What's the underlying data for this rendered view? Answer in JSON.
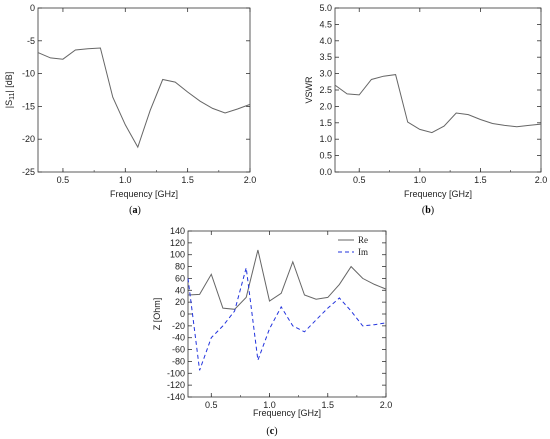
{
  "chart_data": [
    {
      "id": "a",
      "type": "line",
      "caption": "a",
      "xlabel": "Frequency [GHz]",
      "ylabel_main": "|S",
      "ylabel_sub": "11",
      "ylabel_tail": "| [dB]",
      "xlim": [
        0.3,
        2.0
      ],
      "ylim": [
        -25,
        0
      ],
      "xticks": [
        0.5,
        1.0,
        1.5,
        2.0
      ],
      "xtick_labels": [
        "0.5",
        "1.0",
        "1.5",
        "2.0"
      ],
      "yticks": [
        0,
        -5,
        -10,
        -15,
        -20,
        -25
      ],
      "ytick_labels": [
        "0",
        "-5",
        "-10",
        "-15",
        "-20",
        "-25"
      ],
      "series": [
        {
          "color": "#666666",
          "dash": "",
          "x": [
            0.3,
            0.4,
            0.5,
            0.6,
            0.7,
            0.8,
            0.9,
            1.0,
            1.1,
            1.2,
            1.3,
            1.4,
            1.5,
            1.6,
            1.7,
            1.8,
            1.9,
            2.0
          ],
          "y": [
            -6.8,
            -7.6,
            -7.8,
            -6.4,
            -6.2,
            -6.1,
            -13.6,
            -17.8,
            -21.2,
            -15.6,
            -10.9,
            -11.3,
            -12.8,
            -14.2,
            -15.3,
            -16.0,
            -15.4,
            -14.7
          ]
        }
      ]
    },
    {
      "id": "b",
      "type": "line",
      "caption": "b",
      "xlabel": "Frequency [GHz]",
      "ylabel_main": "VSWR",
      "xlim": [
        0.3,
        2.0
      ],
      "ylim": [
        0,
        5
      ],
      "xticks": [
        0.5,
        1.0,
        1.5,
        2.0
      ],
      "xtick_labels": [
        "0.5",
        "1.0",
        "1.5",
        "2.0"
      ],
      "yticks": [
        0,
        0.5,
        1.0,
        1.5,
        2.0,
        2.5,
        3.0,
        3.5,
        4.0,
        4.5,
        5.0
      ],
      "ytick_labels": [
        "0.0",
        "0.5",
        "1.0",
        "1.5",
        "2.0",
        "2.5",
        "3.0",
        "3.5",
        "4.0",
        "4.5",
        "5.0"
      ],
      "series": [
        {
          "color": "#666666",
          "dash": "",
          "x": [
            0.3,
            0.4,
            0.5,
            0.6,
            0.7,
            0.8,
            0.9,
            1.0,
            1.1,
            1.2,
            1.3,
            1.4,
            1.5,
            1.6,
            1.7,
            1.8,
            1.9,
            2.0
          ],
          "y": [
            2.65,
            2.38,
            2.35,
            2.82,
            2.92,
            2.97,
            1.52,
            1.3,
            1.2,
            1.4,
            1.8,
            1.75,
            1.6,
            1.48,
            1.42,
            1.38,
            1.42,
            1.46
          ]
        }
      ]
    },
    {
      "id": "c",
      "type": "line",
      "caption": "c",
      "xlabel": "Frequency [GHz]",
      "ylabel_main": "Z [Ohm]",
      "xlim": [
        0.3,
        2.0
      ],
      "ylim": [
        -140,
        140
      ],
      "xticks": [
        0.5,
        1.0,
        1.5,
        2.0
      ],
      "xtick_labels": [
        "0.5",
        "1.0",
        "1.5",
        "2.0"
      ],
      "yticks": [
        140,
        120,
        100,
        80,
        60,
        40,
        20,
        0,
        -20,
        -40,
        -60,
        -80,
        -100,
        -120,
        -140
      ],
      "ytick_labels": [
        "140",
        "120",
        "100",
        "80",
        "60",
        "40",
        "20",
        "0",
        "-20",
        "-40",
        "-60",
        "-80",
        "-100",
        "-120",
        "-140"
      ],
      "legend_position": "top-right",
      "series": [
        {
          "name": "Re",
          "color": "#666666",
          "dash": "",
          "x": [
            0.3,
            0.4,
            0.5,
            0.6,
            0.7,
            0.8,
            0.9,
            1.0,
            1.1,
            1.2,
            1.3,
            1.4,
            1.5,
            1.6,
            1.7,
            1.8,
            1.9,
            2.0
          ],
          "y": [
            32,
            33,
            67,
            10,
            8,
            28,
            108,
            22,
            35,
            88,
            32,
            25,
            28,
            50,
            80,
            60,
            50,
            42
          ]
        },
        {
          "name": "Im",
          "color": "#2233dd",
          "dash": "4,3",
          "x": [
            0.3,
            0.4,
            0.5,
            0.6,
            0.7,
            0.8,
            0.9,
            1.0,
            1.1,
            1.2,
            1.3,
            1.4,
            1.5,
            1.6,
            1.7,
            1.8,
            1.9,
            2.0
          ],
          "y": [
            60,
            -95,
            -40,
            -20,
            5,
            78,
            -78,
            -25,
            12,
            -20,
            -30,
            -10,
            10,
            27,
            5,
            -20,
            -18,
            -15
          ]
        }
      ]
    }
  ]
}
